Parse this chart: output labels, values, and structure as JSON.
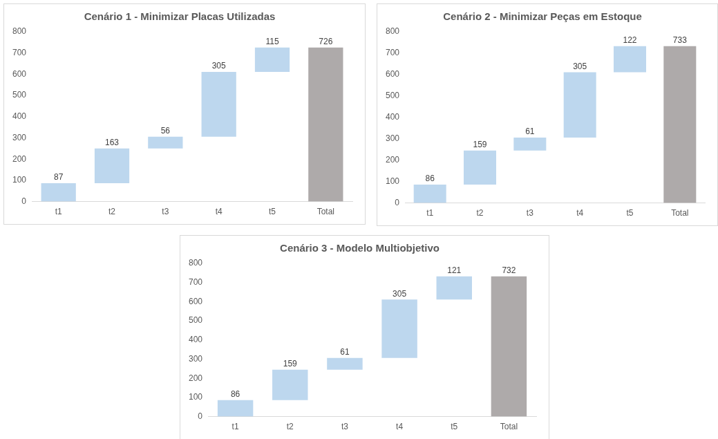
{
  "chart_data": [
    {
      "type": "bar",
      "title": "Cenário 1 - Minimizar Placas Utilizadas",
      "categories": [
        "t1",
        "t2",
        "t3",
        "t4",
        "t5",
        "Total"
      ],
      "values": [
        87,
        163,
        56,
        305,
        115,
        726
      ],
      "base": [
        0,
        87,
        250,
        306,
        611,
        0
      ],
      "colors": [
        "#bdd7ee",
        "#bdd7ee",
        "#bdd7ee",
        "#bdd7ee",
        "#bdd7ee",
        "#aeaaaa"
      ],
      "ylim": [
        0,
        800
      ],
      "yticks": [
        0,
        100,
        200,
        300,
        400,
        500,
        600,
        700,
        800
      ],
      "data_labels": true,
      "grid": false,
      "legend": false
    },
    {
      "type": "bar",
      "title": "Cenário 2 - Minimizar Peças em Estoque",
      "categories": [
        "t1",
        "t2",
        "t3",
        "t4",
        "t5",
        "Total"
      ],
      "values": [
        86,
        159,
        61,
        305,
        122,
        733
      ],
      "base": [
        0,
        86,
        245,
        306,
        611,
        0
      ],
      "colors": [
        "#bdd7ee",
        "#bdd7ee",
        "#bdd7ee",
        "#bdd7ee",
        "#bdd7ee",
        "#aeaaaa"
      ],
      "ylim": [
        0,
        800
      ],
      "yticks": [
        0,
        100,
        200,
        300,
        400,
        500,
        600,
        700,
        800
      ],
      "data_labels": true,
      "grid": false,
      "legend": false
    },
    {
      "type": "bar",
      "title": "Cenário 3 - Modelo Multiobjetivo",
      "categories": [
        "t1",
        "t2",
        "t3",
        "t4",
        "t5",
        "Total"
      ],
      "values": [
        86,
        159,
        61,
        305,
        121,
        732
      ],
      "base": [
        0,
        86,
        245,
        306,
        611,
        0
      ],
      "colors": [
        "#bdd7ee",
        "#bdd7ee",
        "#bdd7ee",
        "#bdd7ee",
        "#bdd7ee",
        "#aeaaaa"
      ],
      "ylim": [
        0,
        800
      ],
      "yticks": [
        0,
        100,
        200,
        300,
        400,
        500,
        600,
        700,
        800
      ],
      "data_labels": true,
      "grid": false,
      "legend": false
    }
  ]
}
